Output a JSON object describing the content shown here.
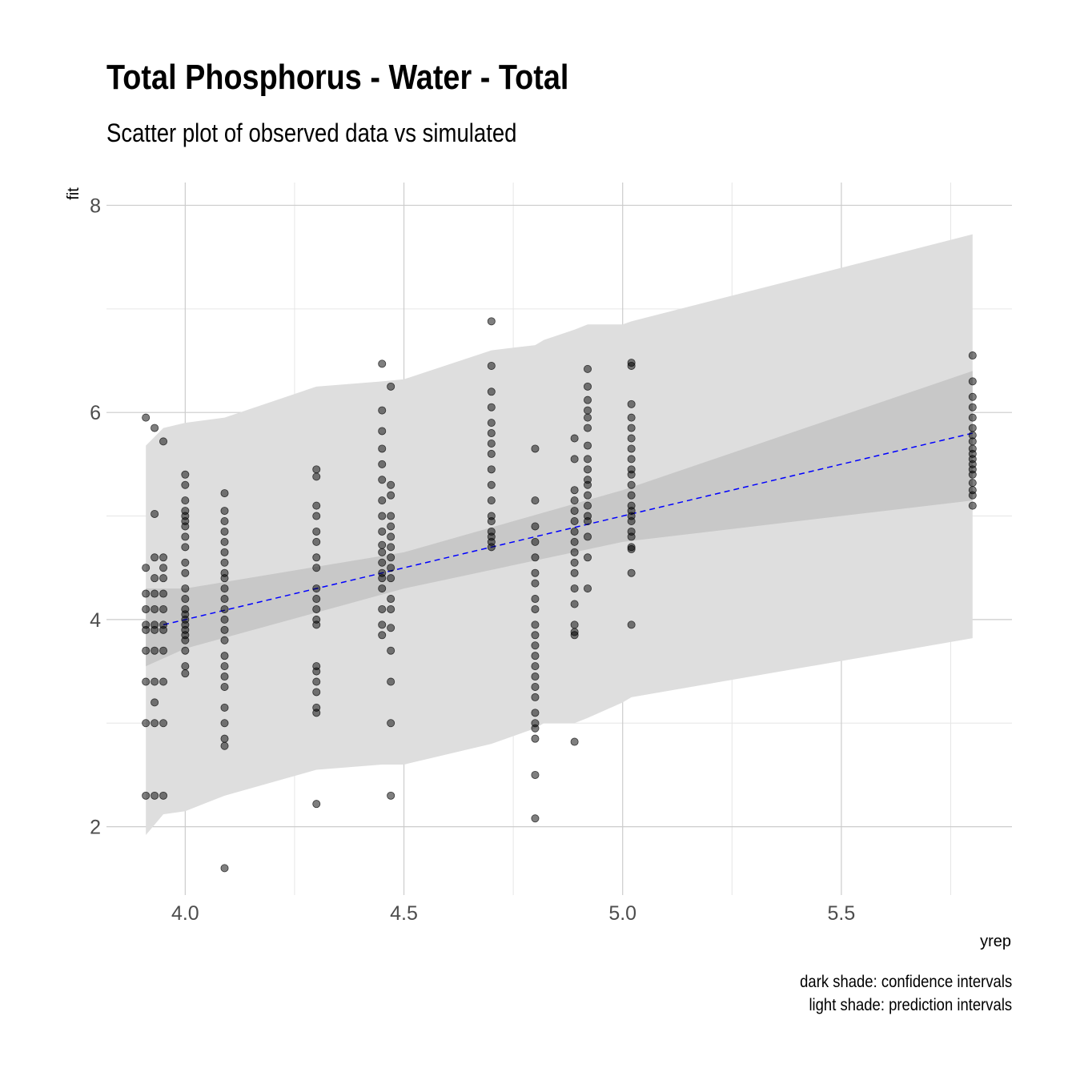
{
  "chart_data": {
    "type": "scatter",
    "title": "Total Phosphorus - Water - Total",
    "subtitle": "Scatter plot of observed data vs simulated",
    "xlabel": "yrep",
    "ylabel": "fit",
    "xlim": [
      3.82,
      5.89
    ],
    "ylim": [
      1.34,
      8.22
    ],
    "x_ticks": [
      4.0,
      4.5,
      5.0,
      5.5
    ],
    "x_tick_labels": [
      "4.0",
      "4.5",
      "5.0",
      "5.5"
    ],
    "y_ticks": [
      2,
      4,
      6,
      8
    ],
    "y_tick_labels": [
      "2",
      "4",
      "6",
      "8"
    ],
    "grid": true,
    "caption": [
      "dark shade: confidence intervals",
      "light shade: prediction intervals"
    ],
    "fit_line": {
      "color": "#0000ff",
      "style": "dashed",
      "x": [
        3.95,
        5.8
      ],
      "y": [
        3.95,
        5.8
      ]
    },
    "confidence_band": {
      "color": "#c8c8c8",
      "x": [
        3.91,
        4.0,
        4.5,
        5.0,
        5.8
      ],
      "lower": [
        3.55,
        3.72,
        4.3,
        4.75,
        5.15
      ],
      "upper": [
        4.3,
        4.3,
        4.65,
        5.25,
        6.4
      ]
    },
    "prediction_band": {
      "color": "#dedede",
      "x": [
        3.91,
        3.95,
        4.0,
        4.09,
        4.3,
        4.45,
        4.5,
        4.7,
        4.8,
        4.82,
        4.89,
        4.92,
        5.0,
        5.02,
        5.8
      ],
      "lower": [
        1.92,
        2.12,
        2.15,
        2.3,
        2.55,
        2.6,
        2.6,
        2.8,
        2.95,
        3.0,
        3.0,
        3.05,
        3.2,
        3.25,
        3.82
      ],
      "upper": [
        5.68,
        5.85,
        5.9,
        5.95,
        6.25,
        6.3,
        6.32,
        6.6,
        6.65,
        6.7,
        6.8,
        6.85,
        6.85,
        6.88,
        7.72
      ]
    },
    "point_color": "#000000",
    "point_opacity": 0.5,
    "series": [
      {
        "x": 3.91,
        "y": [
          5.95,
          4.5,
          4.25,
          4.1,
          3.95,
          3.9,
          3.7,
          3.4,
          3.0,
          2.3
        ]
      },
      {
        "x": 3.93,
        "y": [
          5.85,
          5.02,
          4.6,
          4.4,
          4.25,
          4.1,
          3.95,
          3.9,
          3.7,
          3.4,
          3.2,
          3.0,
          2.3
        ]
      },
      {
        "x": 3.95,
        "y": [
          5.72,
          4.6,
          4.5,
          4.4,
          4.25,
          4.1,
          3.95,
          3.9,
          3.7,
          3.4,
          3.0,
          2.3
        ]
      },
      {
        "x": 4.0,
        "y": [
          5.4,
          5.3,
          5.15,
          5.05,
          5.0,
          4.95,
          4.9,
          4.8,
          4.7,
          4.55,
          4.45,
          4.3,
          4.2,
          4.1,
          4.05,
          4.0,
          3.95,
          3.9,
          3.85,
          3.8,
          3.7,
          3.55,
          3.48
        ]
      },
      {
        "x": 4.09,
        "y": [
          5.22,
          5.05,
          4.95,
          4.85,
          4.75,
          4.65,
          4.55,
          4.45,
          4.4,
          4.3,
          4.2,
          4.1,
          4.0,
          3.9,
          3.8,
          3.65,
          3.55,
          3.45,
          3.35,
          3.15,
          3.0,
          2.85,
          2.78,
          1.6
        ]
      },
      {
        "x": 4.3,
        "y": [
          5.45,
          5.38,
          5.1,
          5.0,
          4.85,
          4.75,
          4.6,
          4.5,
          4.3,
          4.2,
          4.1,
          4.0,
          3.95,
          3.55,
          3.5,
          3.4,
          3.3,
          3.15,
          3.1,
          2.22
        ]
      },
      {
        "x": 4.45,
        "y": [
          6.47,
          6.02,
          5.82,
          5.65,
          5.5,
          5.35,
          5.15,
          5.0,
          4.85,
          4.72,
          4.65,
          4.55,
          4.45,
          4.4,
          4.3,
          4.1,
          3.95,
          3.85
        ]
      },
      {
        "x": 4.47,
        "y": [
          6.25,
          5.3,
          5.2,
          5.0,
          4.9,
          4.8,
          4.7,
          4.6,
          4.5,
          4.4,
          4.2,
          4.1,
          3.92,
          3.7,
          3.4,
          3.0,
          2.3
        ]
      },
      {
        "x": 4.7,
        "y": [
          6.88,
          6.45,
          6.2,
          6.05,
          5.9,
          5.8,
          5.7,
          5.6,
          5.45,
          5.3,
          5.15,
          5.0,
          4.95,
          4.85,
          4.8,
          4.75,
          4.7
        ]
      },
      {
        "x": 4.8,
        "y": [
          5.65,
          5.15,
          4.9,
          4.75,
          4.6,
          4.45,
          4.35,
          4.2,
          4.1,
          3.95,
          3.85,
          3.75,
          3.65,
          3.55,
          3.45,
          3.35,
          3.25,
          3.1,
          3.0,
          2.95,
          2.85,
          2.5,
          2.08
        ]
      },
      {
        "x": 4.89,
        "y": [
          5.75,
          5.55,
          5.25,
          5.15,
          5.05,
          4.95,
          4.85,
          4.75,
          4.65,
          4.55,
          4.45,
          4.3,
          4.15,
          3.95,
          3.88,
          3.85,
          2.82
        ]
      },
      {
        "x": 4.92,
        "y": [
          6.42,
          6.25,
          6.12,
          6.02,
          5.95,
          5.85,
          5.68,
          5.55,
          5.45,
          5.35,
          5.3,
          5.2,
          5.1,
          5.0,
          4.95,
          4.8,
          4.6,
          4.3
        ]
      },
      {
        "x": 5.02,
        "y": [
          6.48,
          6.45,
          6.08,
          5.95,
          5.85,
          5.75,
          5.65,
          5.55,
          5.45,
          5.4,
          5.3,
          5.2,
          5.1,
          5.05,
          5.0,
          4.95,
          4.85,
          4.8,
          4.7,
          4.68,
          4.45,
          3.95
        ]
      },
      {
        "x": 5.8,
        "y": [
          6.55,
          6.3,
          6.15,
          6.05,
          5.95,
          5.85,
          5.78,
          5.72,
          5.65,
          5.6,
          5.55,
          5.5,
          5.45,
          5.4,
          5.32,
          5.25,
          5.2,
          5.1
        ]
      }
    ]
  }
}
